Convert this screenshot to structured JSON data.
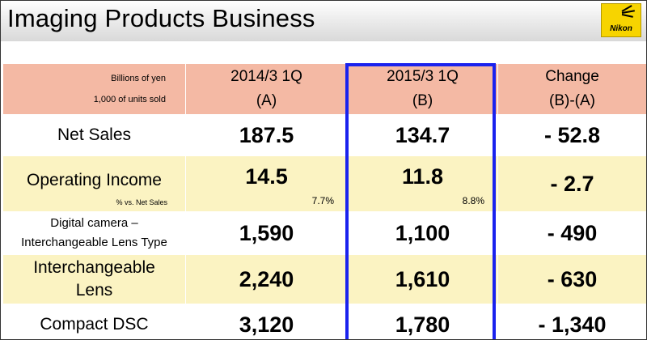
{
  "title": "Imaging Products Business",
  "logo": {
    "text": "Nikon",
    "color": "#f7d400"
  },
  "header": {
    "unit_line1": "Billions of yen",
    "unit_line2": "1,000 of units sold",
    "col_a_line1": "2014/3 1Q",
    "col_a_line2": "(A)",
    "col_b_line1": "2015/3 1Q",
    "col_b_line2": "(B)",
    "col_c_line1": "Change",
    "col_c_line2": "(B)-(A)"
  },
  "rows": {
    "net_sales": {
      "label": "Net Sales",
      "a": "187.5",
      "b": "134.7",
      "change": "- 52.8"
    },
    "operating_income": {
      "label": "Operating Income",
      "note": "% vs. Net Sales",
      "a": "14.5",
      "a_pct": "7.7%",
      "b": "11.8",
      "b_pct": "8.8%",
      "change": "- 2.7"
    },
    "digital_camera": {
      "label_line1": "Digital camera –",
      "label_line2": "Interchangeable Lens Type",
      "a": "1,590",
      "b": "1,100",
      "change": "- 490"
    },
    "lens": {
      "label_line1": "Interchangeable",
      "label_line2": "Lens",
      "a": "2,240",
      "b": "1,610",
      "change": "- 630"
    },
    "compact_dsc": {
      "label": "Compact DSC",
      "a": "3,120",
      "b": "1,780",
      "change": "- 1,340"
    }
  },
  "colors": {
    "header_bg": "#f4b9a4",
    "band_bg": "#fbf3c2",
    "highlight_border": "#1a22ee"
  }
}
